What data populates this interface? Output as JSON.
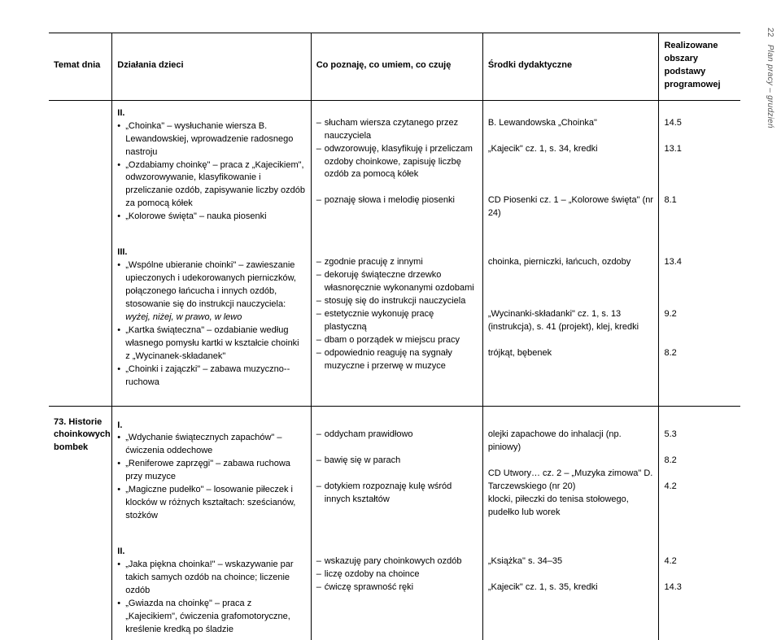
{
  "side": {
    "page_num": "22",
    "label": "Plan pracy – grudzień"
  },
  "headers": {
    "temat": "Temat dnia",
    "dzialania": "Działania dzieci",
    "copoznaje": "Co poznaję, co umiem, co czuję",
    "srodki": "Środki dydaktyczne",
    "real_line1": "Realizowane",
    "real_line2": "obszary podstawy",
    "real_line3": "programowej"
  },
  "sec1": {
    "label": "II.",
    "d1": "„Choinka\" – wysłuchanie wiersza B. Lewandowskiej, wprowadzenie radosnego nastroju",
    "d2": "„Ozdabiamy choinkę\" – praca z „Kajecikiem\", odwzorowywanie, klasyfikowanie i przeliczanie ozdób, zapisywanie liczby ozdób za pomocą kółek",
    "d3": "„Kolorowe święta\" – nauka piosenki",
    "c1": "słucham wiersza czytanego przez nauczyciela",
    "c2": "odwzorowuję, klasyfikuję i przeliczam ozdoby choinkowe, zapisuję liczbę ozdób za pomocą kółek",
    "c3": "poznaję słowa i melodię piosenki",
    "s1": "B. Lewandowska „Choinka\"",
    "s2": "„Kajecik\" cz. 1, s. 34, kredki",
    "s3": "CD Piosenki cz. 1 – „Kolorowe święta\" (nr 24)",
    "r1": "14.5",
    "r2": "13.1",
    "r3": "8.1"
  },
  "sec2": {
    "label": "III.",
    "d1": "„Wspólne ubieranie choinki\" – zawieszanie upieczonych i udekorowanych pierniczków, połączonego łańcucha i innych ozdób, stosowanie się do instrukcji nauczyciela:",
    "d1b": "wyżej, niżej, w prawo, w lewo",
    "d2": "„Kartka świąteczna\" – ozdabianie według własnego pomysłu kartki w kształcie choinki z „Wycinanek-składanek\"",
    "d3": "„Choinki i zajączki\" – zabawa muzyczno-­-ruchowa",
    "c1a": "zgodnie pracuję z innymi",
    "c1b": "dekoruję świąteczne drzewko własnoręcznie wykonanymi ozdobami",
    "c1c": "stosuję się do instrukcji nauczyciela",
    "c2a": "estetycznie wykonuję pracę plastyczną",
    "c2b": "dbam o porządek w miejscu pracy",
    "c3": "odpowiednio reaguję na sygnały muzyczne i przerwę w muzyce",
    "s1": "choinka, pierniczki, łańcuch, ozdoby",
    "s2": "„Wycinanki-składanki\" cz. 1, s. 13 (instrukcja), s. 41 (projekt), klej, kredki",
    "s3": "trójkąt, bębenek",
    "r1": "13.4",
    "r2": "9.2",
    "r3": "8.2"
  },
  "sec3": {
    "temat": "73. Historie choinkowych bombek",
    "label": "I.",
    "d1": "„Wdychanie świątecznych zapachów\" – ćwiczenia oddechowe",
    "d2": "„Reniferowe zaprzęgi\" – zabawa ruchowa przy muzyce",
    "d3": "„Magiczne pudełko\" – losowanie piłeczek i klocków w różnych kształtach: sześcianów, stożków",
    "c1": "oddycham prawidłowo",
    "c2": "bawię się w parach",
    "c3": "dotykiem rozpoznaję kulę wśród innych kształtów",
    "s1": "olejki zapachowe do inhalacji (np. piniowy)",
    "s2": "CD Utwory… cz. 2 – „Muzyka zimowa\" D. Tarczewskiego (nr 20)",
    "s3": "klocki, piłeczki do tenisa stołowego, pudełko lub worek",
    "r1": "5.3",
    "r2": "8.2",
    "r3": "4.2"
  },
  "sec4": {
    "label": "II.",
    "d1": "„Jaka piękna choinka!\" – wskazywanie par takich samych ozdób na choince; liczenie ozdób",
    "d2": "„Gwiazda na choinkę\" –  praca z „Kajecikiem\", ćwiczenia grafomotoryczne, kreślenie kredką po śladzie",
    "c1a": "wskazuję pary choinkowych ozdób",
    "c1b": "liczę ozdoby na choince",
    "c2": "ćwiczę sprawność ręki",
    "s1": "„Książka\" s. 34–35",
    "s2": "„Kajecik\" cz. 1, s. 35, kredki",
    "r1": "4.2",
    "r2": "14.3"
  }
}
